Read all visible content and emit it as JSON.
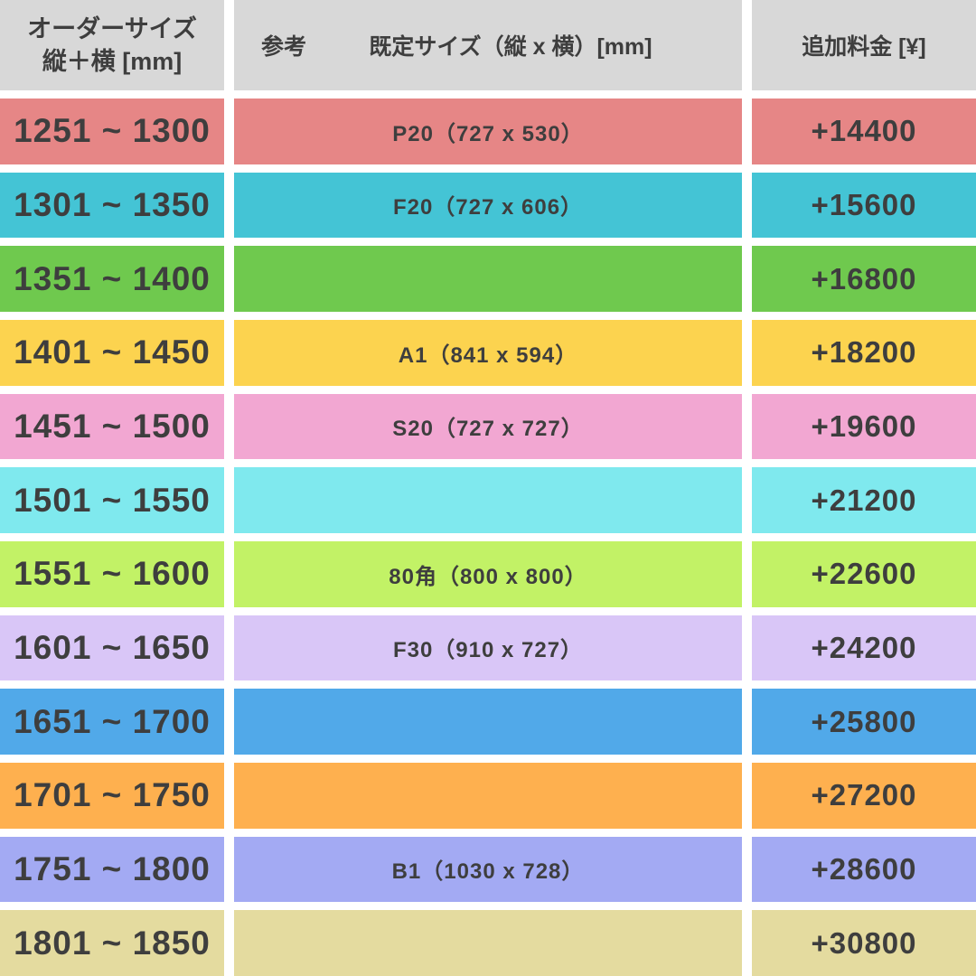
{
  "table": {
    "header": {
      "col1_line1": "オーダーサイズ",
      "col1_line2": "縦＋横 [mm]",
      "col2_ref": "参考",
      "col2_size": "既定サイズ（縦 x 横）[mm]",
      "col3": "追加料金 [¥]"
    },
    "rows": [
      {
        "range": "1251 ~ 1300",
        "reference": "P20（727 x 530）",
        "fee": "+14400",
        "color": "#e68686"
      },
      {
        "range": "1301 ~ 1350",
        "reference": "F20（727 x 606）",
        "fee": "+15600",
        "color": "#44c4d5"
      },
      {
        "range": "1351 ~ 1400",
        "reference": "",
        "fee": "+16800",
        "color": "#6fc94e"
      },
      {
        "range": "1401 ~ 1450",
        "reference": "A1（841 x 594）",
        "fee": "+18200",
        "color": "#fcd34f"
      },
      {
        "range": "1451 ~ 1500",
        "reference": "S20（727 x 727）",
        "fee": "+19600",
        "color": "#f2a7d2"
      },
      {
        "range": "1501 ~ 1550",
        "reference": "",
        "fee": "+21200",
        "color": "#7fe9ee"
      },
      {
        "range": "1551 ~ 1600",
        "reference": "80角（800 x 800）",
        "fee": "+22600",
        "color": "#c2f266"
      },
      {
        "range": "1601 ~ 1650",
        "reference": "F30（910 x 727）",
        "fee": "+24200",
        "color": "#d9c6f7"
      },
      {
        "range": "1651 ~ 1700",
        "reference": "",
        "fee": "+25800",
        "color": "#51a9e9"
      },
      {
        "range": "1701 ~ 1750",
        "reference": "",
        "fee": "+27200",
        "color": "#feb04f"
      },
      {
        "range": "1751 ~ 1800",
        "reference": "B1（1030 x 728）",
        "fee": "+28600",
        "color": "#a3aaf3"
      },
      {
        "range": "1801 ~ 1850",
        "reference": "",
        "fee": "+30800",
        "color": "#e4db9f"
      }
    ]
  },
  "chart_data": {
    "type": "table",
    "title": "オーダーサイズ追加料金表",
    "columns": [
      "オーダーサイズ 縦＋横 [mm]",
      "参考 既定サイズ（縦 x 横）[mm]",
      "追加料金 [¥]"
    ],
    "rows": [
      [
        "1251 ~ 1300",
        "P20（727 x 530）",
        "+14400"
      ],
      [
        "1301 ~ 1350",
        "F20（727 x 606）",
        "+15600"
      ],
      [
        "1351 ~ 1400",
        "",
        "+16800"
      ],
      [
        "1401 ~ 1450",
        "A1（841 x 594）",
        "+18200"
      ],
      [
        "1451 ~ 1500",
        "S20（727 x 727）",
        "+19600"
      ],
      [
        "1501 ~ 1550",
        "",
        "+21200"
      ],
      [
        "1551 ~ 1600",
        "80角（800 x 800）",
        "+22600"
      ],
      [
        "1601 ~ 1650",
        "F30（910 x 727）",
        "+24200"
      ],
      [
        "1651 ~ 1700",
        "",
        "+25800"
      ],
      [
        "1701 ~ 1750",
        "",
        "+27200"
      ],
      [
        "1751 ~ 1800",
        "B1（1030 x 728）",
        "+28600"
      ],
      [
        "1801 ~ 1850",
        "",
        "+30800"
      ]
    ]
  }
}
